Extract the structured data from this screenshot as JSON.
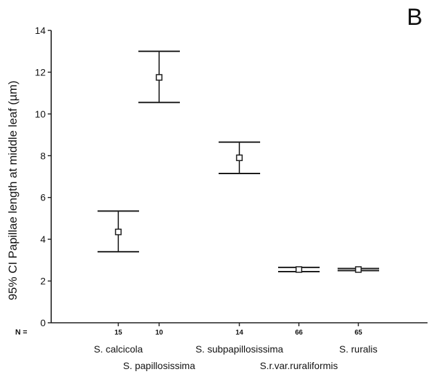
{
  "panel_label": "B",
  "chart_data": {
    "type": "errorbar",
    "ylabel": "95% CI Papillae length at middle leaf (µm)",
    "ylim": [
      0,
      14
    ],
    "yticks": [
      0,
      2,
      4,
      6,
      8,
      10,
      12,
      14
    ],
    "n_label": "N =",
    "categories": [
      {
        "name": "S. calcicola",
        "n": "15",
        "mean": 4.35,
        "lower": 3.4,
        "upper": 5.35
      },
      {
        "name": "S. papillosissima",
        "n": "10",
        "mean": 11.75,
        "lower": 10.55,
        "upper": 13.0
      },
      {
        "name": "S. subpapillosissima",
        "n": "14",
        "mean": 7.9,
        "lower": 7.15,
        "upper": 8.65
      },
      {
        "name": "S.r.var.ruraliformis",
        "n": "66",
        "mean": 2.55,
        "lower": 2.45,
        "upper": 2.65
      },
      {
        "name": "S. ruralis",
        "n": "65",
        "mean": 2.55,
        "lower": 2.5,
        "upper": 2.6
      }
    ],
    "grid": false,
    "legend": "none"
  }
}
